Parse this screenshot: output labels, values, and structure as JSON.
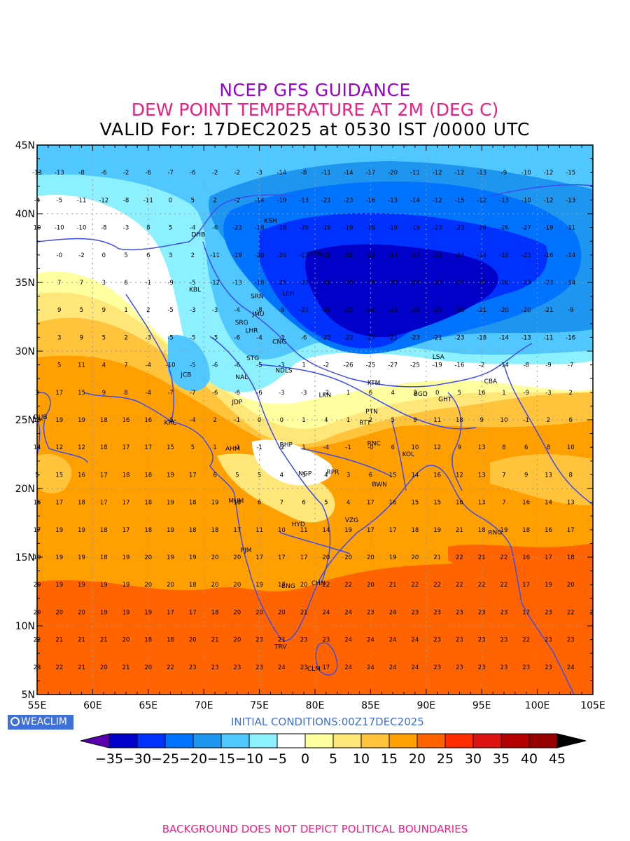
{
  "titles": {
    "line1": "NCEP GFS GUIDANCE",
    "line2": "DEW POINT TEMPERATURE AT 2M (DEG C)",
    "line3": "VALID For: 17DEC2025 at 0530 IST /0000 UTC"
  },
  "colors": {
    "title1": "#9900cc",
    "title2": "#ee1e82",
    "title3": "#000000",
    "coast": "#3c4cf0",
    "footer": "#ee1e82",
    "init": "#3f6fd8"
  },
  "axes": {
    "lat_labels": [
      "45N",
      "40N",
      "35N",
      "30N",
      "25N",
      "20N",
      "15N",
      "10N",
      "5N"
    ],
    "lon_labels": [
      "55E",
      "60E",
      "65E",
      "70E",
      "75E",
      "80E",
      "85E",
      "90E",
      "95E",
      "100E",
      "105E"
    ]
  },
  "cities": [
    {
      "code": "KSH",
      "lon": 76.0,
      "lat": 39.5
    },
    {
      "code": "DHB",
      "lon": 69.5,
      "lat": 38.5
    },
    {
      "code": "HTN",
      "lon": 80.0,
      "lat": 37.1
    },
    {
      "code": "KBL",
      "lon": 69.2,
      "lat": 34.5
    },
    {
      "code": "LEH",
      "lon": 77.6,
      "lat": 34.2
    },
    {
      "code": "SRN",
      "lon": 74.8,
      "lat": 34.0
    },
    {
      "code": "JMU",
      "lon": 74.9,
      "lat": 32.7
    },
    {
      "code": "SRG",
      "lon": 73.4,
      "lat": 32.1
    },
    {
      "code": "LHR",
      "lon": 74.3,
      "lat": 31.5
    },
    {
      "code": "CNG",
      "lon": 76.8,
      "lat": 30.7
    },
    {
      "code": "STG",
      "lon": 74.4,
      "lat": 29.5
    },
    {
      "code": "JCB",
      "lon": 68.4,
      "lat": 28.3
    },
    {
      "code": "NAL",
      "lon": 73.4,
      "lat": 28.1
    },
    {
      "code": "NDLS",
      "lon": 77.2,
      "lat": 28.6
    },
    {
      "code": "LSA",
      "lon": 91.1,
      "lat": 29.6
    },
    {
      "code": "KTM",
      "lon": 85.3,
      "lat": 27.7
    },
    {
      "code": "CBA",
      "lon": 95.8,
      "lat": 27.8
    },
    {
      "code": "BGD",
      "lon": 89.5,
      "lat": 26.9
    },
    {
      "code": "GHT",
      "lon": 91.7,
      "lat": 26.5
    },
    {
      "code": "JDP",
      "lon": 73.0,
      "lat": 26.3
    },
    {
      "code": "LKN",
      "lon": 80.9,
      "lat": 26.8
    },
    {
      "code": "PTN",
      "lon": 85.1,
      "lat": 25.6
    },
    {
      "code": "KRC",
      "lon": 67.0,
      "lat": 24.8
    },
    {
      "code": "RTT",
      "lon": 84.5,
      "lat": 24.8
    },
    {
      "code": "DUB",
      "lon": 55.3,
      "lat": 25.2
    },
    {
      "code": "BHP",
      "lon": 77.4,
      "lat": 23.2
    },
    {
      "code": "RNC",
      "lon": 85.3,
      "lat": 23.3
    },
    {
      "code": "AHM",
      "lon": 72.6,
      "lat": 22.9
    },
    {
      "code": "KOL",
      "lon": 88.4,
      "lat": 22.5
    },
    {
      "code": "NGP",
      "lon": 79.1,
      "lat": 21.1
    },
    {
      "code": "RPR",
      "lon": 81.6,
      "lat": 21.2
    },
    {
      "code": "BWN",
      "lon": 85.8,
      "lat": 20.3
    },
    {
      "code": "MUM",
      "lon": 72.9,
      "lat": 19.1
    },
    {
      "code": "HYD",
      "lon": 78.5,
      "lat": 17.4
    },
    {
      "code": "VZG",
      "lon": 83.3,
      "lat": 17.7
    },
    {
      "code": "RNG",
      "lon": 96.2,
      "lat": 16.8
    },
    {
      "code": "PJM",
      "lon": 73.8,
      "lat": 15.5
    },
    {
      "code": "CHN",
      "lon": 80.3,
      "lat": 13.1
    },
    {
      "code": "BNG",
      "lon": 77.6,
      "lat": 12.9
    },
    {
      "code": "TRV",
      "lon": 76.9,
      "lat": 8.5
    },
    {
      "code": "CLM",
      "lon": 79.9,
      "lat": 6.9
    }
  ],
  "grid_values": {
    "lons": [
      55,
      57,
      59,
      61,
      63,
      65,
      67,
      69,
      71,
      73,
      75,
      77,
      79,
      81,
      83,
      85,
      87,
      89,
      91,
      93,
      95,
      97,
      99,
      101,
      103,
      105
    ],
    "rows": [
      {
        "lat": 43.0,
        "values": [
          "-13",
          "-13",
          "-8",
          "-6",
          "-2",
          "-6",
          "-7",
          "-6",
          "-2",
          "-2",
          "-3",
          "-14",
          "-8",
          "-11",
          "-14",
          "-17",
          "-20",
          "-11",
          "-12",
          "-12",
          "-13",
          "-9",
          "-10",
          "-12",
          "-15",
          ""
        ]
      },
      {
        "lat": 41.0,
        "values": [
          "-4",
          "-5",
          "-11",
          "-12",
          "-8",
          "-11",
          "0",
          "5",
          "2",
          "-2",
          "-14",
          "-19",
          "-13",
          "-21",
          "-23",
          "-16",
          "-13",
          "-14",
          "-12",
          "-15",
          "-12",
          "-13",
          "-10",
          "-12",
          "-13",
          ""
        ]
      },
      {
        "lat": 39.0,
        "values": [
          "10",
          "-10",
          "-10",
          "-8",
          "-3",
          "8",
          "5",
          "-4",
          "-6",
          "-23",
          "-18",
          "-18",
          "-20",
          "-19",
          "-19",
          "-18",
          "-19",
          "-19",
          "-23",
          "-23",
          "-24",
          "-26",
          "-27",
          "-19",
          "-11",
          ""
        ]
      },
      {
        "lat": 37.0,
        "values": [
          "",
          "-0",
          "-2",
          "0",
          "5",
          "6",
          "3",
          "2",
          "-11",
          "-19",
          "-20",
          "-20",
          "-17",
          "-18",
          "-18",
          "-29",
          "-24",
          "-24",
          "-25",
          "-24",
          "-14",
          "-18",
          "-23",
          "-16",
          "-14",
          ""
        ]
      },
      {
        "lat": 35.0,
        "values": [
          "",
          "7",
          "7",
          "3",
          "6",
          "-1",
          "-9",
          "-5",
          "-12",
          "-13",
          "-18",
          "-25",
          "-23",
          "-30",
          "-28",
          "-28",
          "-20",
          "-23",
          "-27",
          "-25",
          "-22",
          "-20",
          "-23",
          "-23",
          "-14",
          ""
        ]
      },
      {
        "lat": 33.0,
        "values": [
          "",
          "9",
          "5",
          "9",
          "1",
          "2",
          "-5",
          "-3",
          "-3",
          "-4",
          "-8",
          "-9",
          "-23",
          "-20",
          "-25",
          "-26",
          "-23",
          "-22",
          "-26",
          "-26",
          "-21",
          "-20",
          "-20",
          "-21",
          "-9",
          ""
        ]
      },
      {
        "lat": 31.0,
        "values": [
          "",
          "3",
          "9",
          "5",
          "2",
          "-3",
          "-5",
          "-5",
          "-5",
          "-6",
          "-4",
          "-3",
          "-6",
          "-23",
          "-22",
          "-27",
          "-21",
          "-23",
          "-21",
          "-23",
          "-18",
          "-14",
          "-13",
          "-11",
          "-16",
          ""
        ]
      },
      {
        "lat": 29.0,
        "values": [
          "",
          "5",
          "11",
          "4",
          "7",
          "-4",
          "-10",
          "-5",
          "-6",
          "-6",
          "-5",
          "-3",
          "1",
          "-2",
          "-26",
          "-25",
          "-27",
          "-25",
          "-19",
          "-16",
          "-2",
          "-14",
          "-8",
          "-9",
          "-7",
          ""
        ]
      },
      {
        "lat": 27.0,
        "values": [
          "3",
          "17",
          "15",
          "9",
          "8",
          "-4",
          "-7",
          "-7",
          "-6",
          "-6",
          "-6",
          "-3",
          "-3",
          "-2",
          "1",
          "6",
          "4",
          "3",
          "0",
          "5",
          "16",
          "1",
          "-9",
          "-3",
          "2",
          ""
        ]
      },
      {
        "lat": 25.0,
        "values": [
          "15",
          "19",
          "19",
          "18",
          "16",
          "16",
          "-5",
          "-4",
          "2",
          "-1",
          "0",
          "0",
          "1",
          "4",
          "1",
          "2",
          "5",
          "9",
          "11",
          "18",
          "9",
          "10",
          "-1",
          "2",
          "6",
          ""
        ]
      },
      {
        "lat": 23.0,
        "values": [
          "14",
          "12",
          "12",
          "18",
          "17",
          "17",
          "15",
          "5",
          "1",
          "-1",
          "-1",
          "-2",
          "1",
          "-4",
          "-1",
          "-0",
          "6",
          "10",
          "12",
          "9",
          "13",
          "8",
          "6",
          "8",
          "10",
          ""
        ]
      },
      {
        "lat": 21.0,
        "values": [
          "5",
          "15",
          "16",
          "17",
          "18",
          "18",
          "19",
          "17",
          "6",
          "5",
          "5",
          "4",
          "3",
          "4",
          "3",
          "6",
          "15",
          "14",
          "16",
          "12",
          "13",
          "7",
          "9",
          "13",
          "8",
          ""
        ]
      },
      {
        "lat": 19.0,
        "values": [
          "16",
          "17",
          "18",
          "17",
          "17",
          "18",
          "19",
          "18",
          "19",
          "18",
          "6",
          "7",
          "6",
          "5",
          "4",
          "17",
          "16",
          "15",
          "15",
          "16",
          "13",
          "7",
          "16",
          "14",
          "13",
          ""
        ]
      },
      {
        "lat": 17.0,
        "values": [
          "17",
          "19",
          "19",
          "18",
          "17",
          "18",
          "19",
          "18",
          "18",
          "17",
          "11",
          "10",
          "11",
          "14",
          "19",
          "17",
          "17",
          "18",
          "19",
          "21",
          "18",
          "19",
          "18",
          "16",
          "17",
          ""
        ]
      },
      {
        "lat": 15.0,
        "values": [
          "19",
          "19",
          "19",
          "18",
          "19",
          "20",
          "19",
          "19",
          "20",
          "20",
          "17",
          "17",
          "17",
          "20",
          "20",
          "20",
          "19",
          "20",
          "21",
          "22",
          "21",
          "22",
          "16",
          "17",
          "18",
          ""
        ]
      },
      {
        "lat": 13.0,
        "values": [
          "20",
          "19",
          "19",
          "19",
          "19",
          "20",
          "20",
          "18",
          "20",
          "20",
          "19",
          "17",
          "20",
          "22",
          "22",
          "20",
          "21",
          "22",
          "22",
          "22",
          "22",
          "22",
          "17",
          "19",
          "20",
          ""
        ]
      },
      {
        "lat": 11.0,
        "values": [
          "20",
          "20",
          "20",
          "19",
          "19",
          "19",
          "17",
          "17",
          "18",
          "20",
          "20",
          "20",
          "21",
          "24",
          "24",
          "23",
          "24",
          "23",
          "23",
          "23",
          "23",
          "23",
          "17",
          "23",
          "22",
          "2"
        ]
      },
      {
        "lat": 9.0,
        "values": [
          "22",
          "21",
          "21",
          "21",
          "20",
          "18",
          "18",
          "20",
          "21",
          "20",
          "23",
          "21",
          "23",
          "23",
          "24",
          "24",
          "24",
          "24",
          "23",
          "23",
          "23",
          "23",
          "22",
          "23",
          "23",
          ""
        ]
      },
      {
        "lat": 7.0,
        "values": [
          "23",
          "22",
          "21",
          "20",
          "21",
          "20",
          "22",
          "23",
          "23",
          "23",
          "23",
          "24",
          "23",
          "17",
          "24",
          "24",
          "24",
          "24",
          "23",
          "23",
          "23",
          "23",
          "23",
          "23",
          "24",
          ""
        ]
      }
    ]
  },
  "colorbar": {
    "labels": [
      "−35",
      "−30",
      "−25",
      "−20",
      "−15",
      "−10",
      "−5",
      "0",
      "5",
      "10",
      "15",
      "20",
      "25",
      "30",
      "35",
      "40",
      "45"
    ],
    "colors": [
      "#5a00b0",
      "#0000c8",
      "#0032ff",
      "#0073ff",
      "#1e96f0",
      "#50c8ff",
      "#8cf0ff",
      "#ffffff",
      "#ffffa0",
      "#ffe678",
      "#ffc33c",
      "#ffa000",
      "#ff6400",
      "#ff2d00",
      "#dc1414",
      "#b40000",
      "#960000",
      "#000000"
    ]
  },
  "branding": "WEACLIM",
  "initial_conditions": "INITIAL  CONDITIONS:00Z17DEC2025",
  "footer": "BACKGROUND DOES NOT DEPICT POLITICAL BOUNDARIES"
}
